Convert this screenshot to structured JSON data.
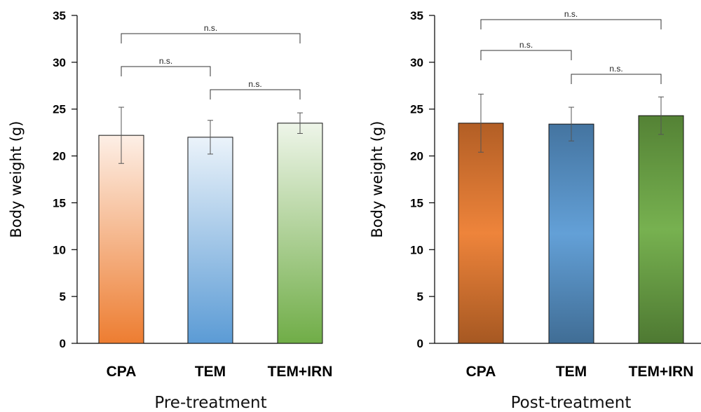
{
  "chart_data": [
    {
      "type": "bar",
      "title": "Pre-treatment",
      "xlabel": "Pre-treatment",
      "ylabel": "Body weight (g)",
      "ylim": [
        0,
        35
      ],
      "yticks": [
        0,
        5,
        10,
        15,
        20,
        25,
        30,
        35
      ],
      "grid": false,
      "categories": [
        "CPA",
        "TEM",
        "TEM+IRN"
      ],
      "values": [
        22.2,
        22.0,
        23.5
      ],
      "errors": [
        3.0,
        1.8,
        1.1
      ],
      "colors": [
        "#ED7D31",
        "#5B9BD5",
        "#70AD47"
      ],
      "comparisons": [
        {
          "from": 0,
          "to": 2,
          "label": "n.s."
        },
        {
          "from": 0,
          "to": 1,
          "label": "n.s."
        },
        {
          "from": 1,
          "to": 2,
          "label": "n.s."
        }
      ]
    },
    {
      "type": "bar",
      "title": "Post-treatment",
      "xlabel": "Post-treatment",
      "ylabel": "Body weight (g)",
      "ylim": [
        0,
        35
      ],
      "yticks": [
        0,
        5,
        10,
        15,
        20,
        25,
        30,
        35
      ],
      "grid": false,
      "categories": [
        "CPA",
        "TEM",
        "TEM+IRN"
      ],
      "values": [
        23.5,
        23.4,
        24.3
      ],
      "errors": [
        3.1,
        1.8,
        2.0
      ],
      "colors": [
        "#ED7D31",
        "#5B9BD5",
        "#70AD47"
      ],
      "comparisons": [
        {
          "from": 0,
          "to": 2,
          "label": "n.s."
        },
        {
          "from": 0,
          "to": 1,
          "label": "n.s."
        },
        {
          "from": 1,
          "to": 2,
          "label": "n.s."
        }
      ]
    }
  ]
}
